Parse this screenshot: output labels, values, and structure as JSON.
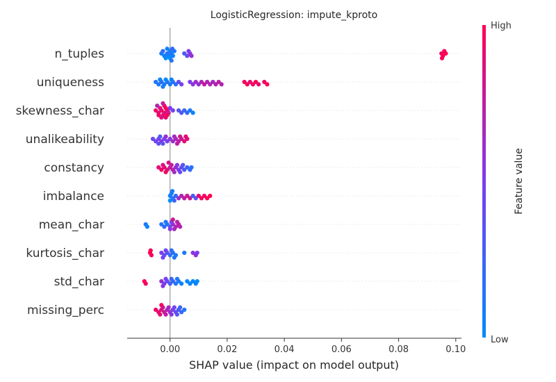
{
  "chart_data": {
    "type": "scatter",
    "subtype": "shap-beeswarm",
    "title": "LogisticRegression: impute_kproto",
    "xlabel": "SHAP value (impact on model output)",
    "xlim": [
      -0.015,
      0.102
    ],
    "xticks": [
      {
        "value": 0.0,
        "label": "0.00"
      },
      {
        "value": 0.02,
        "label": "0.02"
      },
      {
        "value": 0.04,
        "label": "0.04"
      },
      {
        "value": 0.06,
        "label": "0.06"
      },
      {
        "value": 0.08,
        "label": "0.08"
      },
      {
        "value": 0.1,
        "label": "0.10"
      }
    ],
    "colorbar": {
      "label": "Feature value",
      "high_label": "High",
      "low_label": "Low",
      "low_color": "#008bfb",
      "high_color": "#ff0052"
    },
    "features": [
      {
        "name": "n_tuples",
        "points": [
          [
            -0.003,
            0.1
          ],
          [
            -0.002,
            0.05
          ],
          [
            -0.001,
            0.15
          ],
          [
            -0.0005,
            0.08
          ],
          [
            0.0,
            0.1
          ],
          [
            0.0005,
            0.12
          ],
          [
            0.001,
            0.05
          ],
          [
            0.0015,
            0.1
          ],
          [
            -0.0025,
            0.2
          ],
          [
            -0.0015,
            0.0
          ],
          [
            0.0,
            0.0
          ],
          [
            0.0008,
            0.2
          ],
          [
            -0.001,
            0.05
          ],
          [
            0.0005,
            0.15
          ],
          [
            0.005,
            0.3
          ],
          [
            0.006,
            0.4
          ],
          [
            0.007,
            0.55
          ],
          [
            0.0075,
            0.6
          ],
          [
            0.0065,
            0.5
          ],
          [
            0.095,
            0.95
          ],
          [
            0.0955,
            1.0
          ],
          [
            0.096,
            0.97
          ],
          [
            0.0965,
            1.0
          ],
          [
            0.0952,
            0.98
          ]
        ]
      },
      {
        "name": "uniqueness",
        "points": [
          [
            -0.005,
            0.15
          ],
          [
            -0.004,
            0.1
          ],
          [
            -0.003,
            0.2
          ],
          [
            -0.002,
            0.1
          ],
          [
            -0.001,
            0.15
          ],
          [
            0.0,
            0.1
          ],
          [
            0.001,
            0.2
          ],
          [
            -0.0035,
            0.05
          ],
          [
            -0.0015,
            0.0
          ],
          [
            0.0005,
            0.05
          ],
          [
            0.002,
            0.15
          ],
          [
            -0.0025,
            0.1
          ],
          [
            0.003,
            0.4
          ],
          [
            0.004,
            0.45
          ],
          [
            0.007,
            0.5
          ],
          [
            0.008,
            0.55
          ],
          [
            0.009,
            0.6
          ],
          [
            0.01,
            0.6
          ],
          [
            0.011,
            0.7
          ],
          [
            0.012,
            0.75
          ],
          [
            0.013,
            0.7
          ],
          [
            0.014,
            0.7
          ],
          [
            0.015,
            0.65
          ],
          [
            0.016,
            0.7
          ],
          [
            0.017,
            0.75
          ],
          [
            0.018,
            0.7
          ],
          [
            0.026,
            0.95
          ],
          [
            0.027,
            1.0
          ],
          [
            0.028,
            0.9
          ],
          [
            0.029,
            0.95
          ],
          [
            0.03,
            1.0
          ],
          [
            0.031,
            0.9
          ],
          [
            0.033,
            0.95
          ],
          [
            0.034,
            1.0
          ]
        ]
      },
      {
        "name": "skewness_char",
        "points": [
          [
            -0.005,
            0.95
          ],
          [
            -0.004,
            0.9
          ],
          [
            -0.003,
            0.95
          ],
          [
            -0.002,
            0.85
          ],
          [
            -0.001,
            0.9
          ],
          [
            -0.0015,
            1.0
          ],
          [
            -0.0025,
            0.9
          ],
          [
            -0.0035,
            0.85
          ],
          [
            -0.0005,
            0.8
          ],
          [
            -0.002,
            0.95
          ],
          [
            -0.003,
            0.85
          ],
          [
            -0.004,
            0.95
          ],
          [
            -0.0045,
            0.7
          ],
          [
            -0.0025,
            0.75
          ],
          [
            0.0,
            0.5
          ],
          [
            0.001,
            0.45
          ],
          [
            0.003,
            0.35
          ],
          [
            0.004,
            0.3
          ],
          [
            0.005,
            0.25
          ],
          [
            0.006,
            0.2
          ],
          [
            0.007,
            0.1
          ],
          [
            0.008,
            0.05
          ],
          [
            -0.001,
            1.0
          ],
          [
            -0.0015,
            0.9
          ]
        ]
      },
      {
        "name": "unalikeability",
        "points": [
          [
            -0.006,
            0.4
          ],
          [
            -0.005,
            0.45
          ],
          [
            -0.004,
            0.5
          ],
          [
            -0.003,
            0.55
          ],
          [
            -0.002,
            0.45
          ],
          [
            -0.001,
            0.5
          ],
          [
            0.0,
            0.55
          ],
          [
            0.001,
            0.6
          ],
          [
            0.002,
            0.7
          ],
          [
            0.003,
            0.75
          ],
          [
            0.004,
            0.8
          ],
          [
            0.005,
            0.85
          ],
          [
            0.006,
            0.9
          ],
          [
            -0.0035,
            0.3
          ],
          [
            -0.0025,
            0.35
          ],
          [
            -0.0015,
            0.6
          ],
          [
            0.0015,
            0.65
          ],
          [
            0.0025,
            0.75
          ],
          [
            -0.004,
            0.4
          ],
          [
            0.0035,
            0.8
          ],
          [
            0.0055,
            0.9
          ]
        ]
      },
      {
        "name": "constancy",
        "points": [
          [
            -0.004,
            0.9
          ],
          [
            -0.003,
            0.95
          ],
          [
            -0.002,
            0.9
          ],
          [
            -0.001,
            0.85
          ],
          [
            0.0,
            0.8
          ],
          [
            0.001,
            0.7
          ],
          [
            0.002,
            0.6
          ],
          [
            0.003,
            0.5
          ],
          [
            0.004,
            0.4
          ],
          [
            0.005,
            0.3
          ],
          [
            0.006,
            0.25
          ],
          [
            0.007,
            0.2
          ],
          [
            0.0075,
            0.15
          ],
          [
            -0.0025,
            0.85
          ],
          [
            -0.0015,
            0.95
          ],
          [
            0.0005,
            0.75
          ],
          [
            0.0015,
            0.65
          ],
          [
            0.0025,
            0.55
          ],
          [
            0.0035,
            0.45
          ],
          [
            0.0045,
            0.35
          ],
          [
            -0.0005,
            0.85
          ]
        ]
      },
      {
        "name": "imbalance",
        "points": [
          [
            0.0,
            0.1
          ],
          [
            0.001,
            0.15
          ],
          [
            0.002,
            0.2
          ],
          [
            0.0005,
            0.05
          ],
          [
            0.0015,
            0.25
          ],
          [
            0.0,
            0.0
          ],
          [
            0.0008,
            0.1
          ],
          [
            0.003,
            0.6
          ],
          [
            0.004,
            0.7
          ],
          [
            0.005,
            0.75
          ],
          [
            0.006,
            0.8
          ],
          [
            0.007,
            0.8
          ],
          [
            0.008,
            0.3
          ],
          [
            0.009,
            0.35
          ],
          [
            0.01,
            0.9
          ],
          [
            0.011,
            0.95
          ],
          [
            0.012,
            0.95
          ],
          [
            0.013,
            1.0
          ],
          [
            0.014,
            1.0
          ]
        ]
      },
      {
        "name": "mean_char",
        "points": [
          [
            -0.0085,
            0.1
          ],
          [
            -0.008,
            0.05
          ],
          [
            -0.003,
            0.15
          ],
          [
            -0.002,
            0.2
          ],
          [
            -0.001,
            0.1
          ],
          [
            0.0,
            0.4
          ],
          [
            0.001,
            0.6
          ],
          [
            0.002,
            0.7
          ],
          [
            0.003,
            0.75
          ],
          [
            0.0035,
            0.7
          ],
          [
            -0.0015,
            0.15
          ],
          [
            0.0005,
            0.5
          ],
          [
            0.0015,
            0.65
          ],
          [
            0.0025,
            0.72
          ],
          [
            0.0,
            0.55
          ],
          [
            0.001,
            0.8
          ]
        ]
      },
      {
        "name": "kurtosis_char",
        "points": [
          [
            -0.007,
            1.0
          ],
          [
            -0.0065,
            0.95
          ],
          [
            -0.0068,
            0.98
          ],
          [
            -0.003,
            0.5
          ],
          [
            -0.002,
            0.4
          ],
          [
            -0.001,
            0.35
          ],
          [
            0.0,
            0.2
          ],
          [
            0.001,
            0.15
          ],
          [
            0.002,
            0.1
          ],
          [
            0.005,
            0.1
          ],
          [
            0.008,
            0.55
          ],
          [
            0.009,
            0.6
          ],
          [
            0.0095,
            0.5
          ],
          [
            -0.0015,
            0.45
          ],
          [
            0.0005,
            0.2
          ],
          [
            0.0015,
            0.12
          ],
          [
            -0.0025,
            0.45
          ]
        ]
      },
      {
        "name": "std_char",
        "points": [
          [
            -0.009,
            1.0
          ],
          [
            -0.0085,
            0.95
          ],
          [
            -0.003,
            0.6
          ],
          [
            -0.002,
            0.5
          ],
          [
            -0.001,
            0.4
          ],
          [
            0.0,
            0.3
          ],
          [
            0.001,
            0.2
          ],
          [
            0.002,
            0.15
          ],
          [
            0.003,
            0.1
          ],
          [
            0.004,
            0.05
          ],
          [
            0.006,
            0.0
          ],
          [
            0.007,
            0.05
          ],
          [
            0.008,
            0.02
          ],
          [
            0.009,
            0.05
          ],
          [
            0.0095,
            0.0
          ],
          [
            -0.0015,
            0.45
          ],
          [
            0.0005,
            0.25
          ],
          [
            -0.0025,
            0.55
          ],
          [
            0.0025,
            0.12
          ]
        ]
      },
      {
        "name": "missing_perc",
        "points": [
          [
            -0.005,
            0.95
          ],
          [
            -0.004,
            0.9
          ],
          [
            -0.003,
            0.85
          ],
          [
            -0.002,
            0.8
          ],
          [
            -0.001,
            0.7
          ],
          [
            0.0,
            0.6
          ],
          [
            0.001,
            0.5
          ],
          [
            0.002,
            0.4
          ],
          [
            0.003,
            0.3
          ],
          [
            0.004,
            0.2
          ],
          [
            0.005,
            0.15
          ],
          [
            -0.0025,
            0.8
          ],
          [
            -0.0015,
            0.75
          ],
          [
            -0.0005,
            0.65
          ],
          [
            0.0005,
            0.55
          ],
          [
            0.0015,
            0.45
          ],
          [
            0.0025,
            0.35
          ],
          [
            -0.0035,
            0.9
          ],
          [
            -0.003,
            0.95
          ],
          [
            0.0035,
            0.25
          ]
        ]
      }
    ]
  }
}
